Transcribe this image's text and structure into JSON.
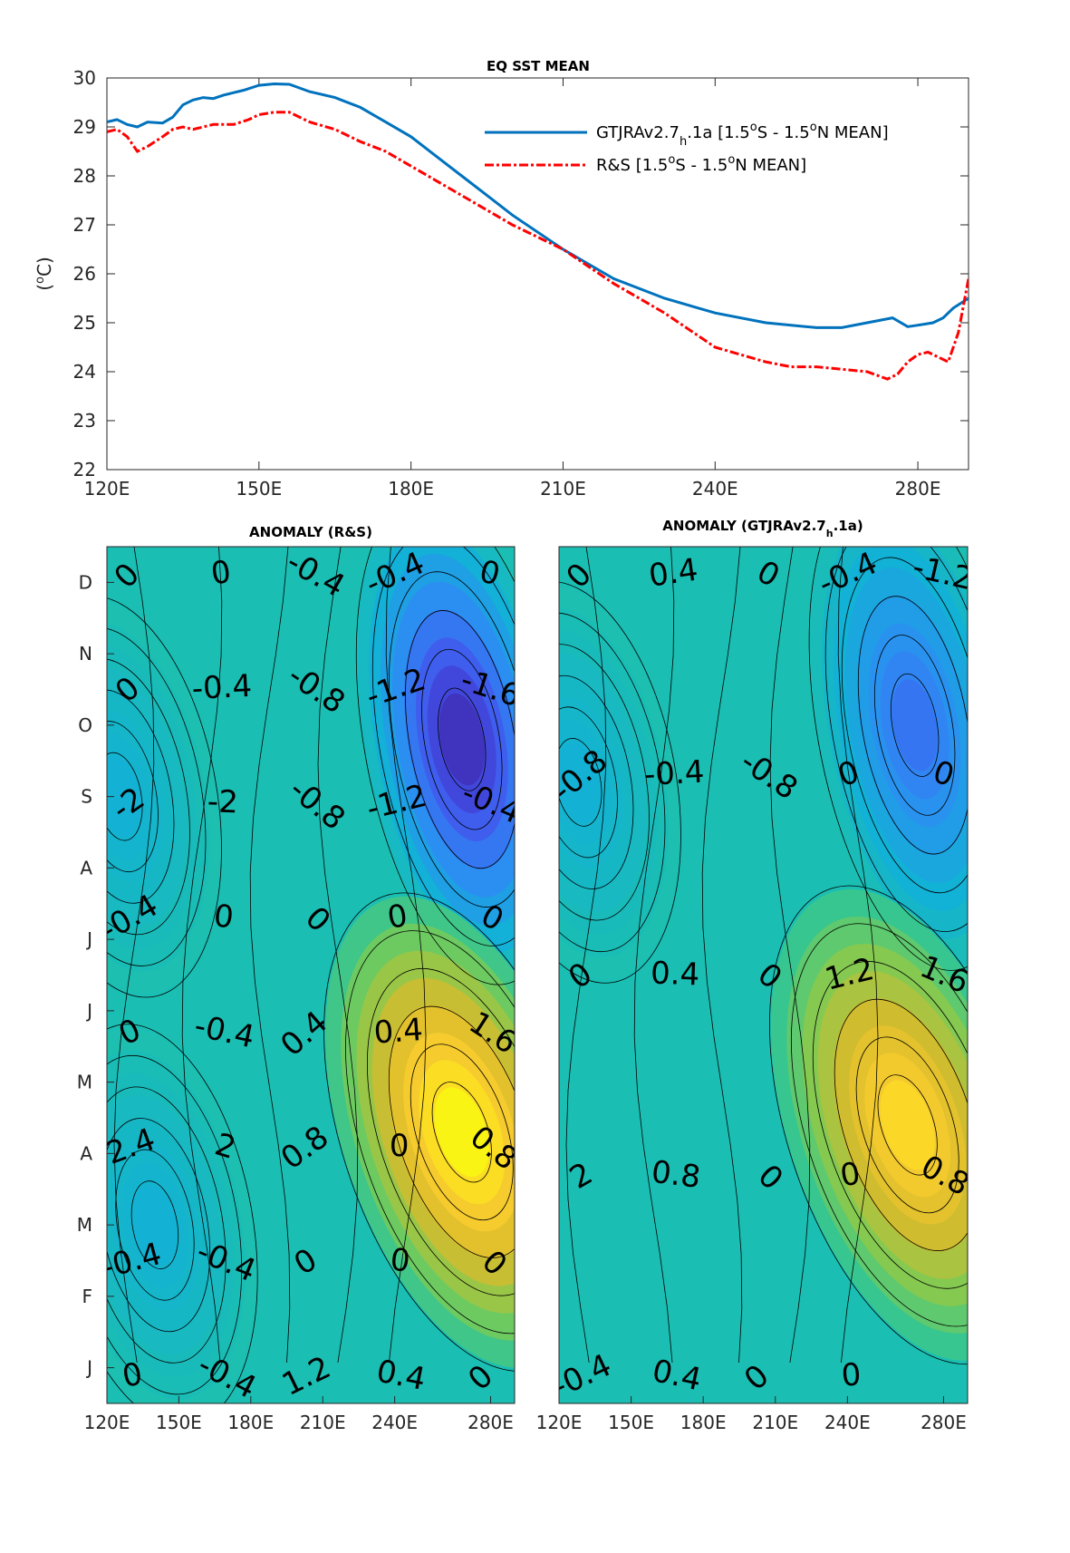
{
  "colors": {
    "gtjra": "#0072BD",
    "rs": "#FF0000",
    "colormap": [
      "#3e26a8",
      "#4352ec",
      "#2d8cf4",
      "#12b1d6",
      "#1fc4a3",
      "#7ccb55",
      "#d5bb2d",
      "#fcce2e",
      "#f9fb0e"
    ]
  },
  "chart_data": [
    {
      "type": "line",
      "title": "EQ SST MEAN",
      "ylabel": "(°C)",
      "xlabel": "",
      "xlim": [
        120,
        290
      ],
      "ylim": [
        22,
        30
      ],
      "xticks": [
        120,
        150,
        180,
        210,
        240,
        280
      ],
      "xtick_labels": [
        "120E",
        "150E",
        "180E",
        "210E",
        "240E",
        "280E"
      ],
      "yticks": [
        22,
        23,
        24,
        25,
        26,
        27,
        28,
        29,
        30
      ],
      "ytick_labels": [
        "22",
        "23",
        "24",
        "25",
        "26",
        "27",
        "28",
        "29",
        "30"
      ],
      "legend_position": "top-right",
      "series": [
        {
          "name": "GTJRAv2.7h.1a [1.5°S - 1.5°N MEAN]",
          "legend_main": "GTJRAv2.7",
          "legend_sub": "h",
          "legend_rest": ".1a [1.5",
          "legend_sup1": "o",
          "legend_mid": "S - 1.5",
          "legend_sup2": "o",
          "legend_end": "N MEAN]",
          "x": [
            120,
            122,
            124,
            126,
            128,
            131,
            133,
            135,
            137,
            139,
            141,
            143,
            145,
            147,
            150,
            153,
            156,
            160,
            165,
            170,
            175,
            180,
            185,
            190,
            195,
            200,
            210,
            220,
            230,
            240,
            250,
            260,
            265,
            270,
            275,
            278,
            280,
            283,
            285,
            287,
            290
          ],
          "y": [
            29.1,
            29.15,
            29.05,
            29.0,
            29.1,
            29.08,
            29.2,
            29.45,
            29.55,
            29.6,
            29.58,
            29.65,
            29.7,
            29.75,
            29.85,
            29.88,
            29.87,
            29.72,
            29.6,
            29.4,
            29.1,
            28.8,
            28.4,
            28.0,
            27.6,
            27.2,
            26.5,
            25.9,
            25.5,
            25.2,
            25.0,
            24.9,
            24.9,
            25.0,
            25.1,
            24.92,
            24.95,
            25.0,
            25.1,
            25.3,
            25.5
          ]
        },
        {
          "name": "R&S [1.5°S - 1.5°N MEAN]",
          "legend_main": "R&S [1.5",
          "legend_sup1": "o",
          "legend_mid": "S - 1.5",
          "legend_sup2": "o",
          "legend_end": "N MEAN]",
          "x": [
            120,
            122,
            124,
            126,
            128,
            131,
            133,
            135,
            137,
            139,
            141,
            143,
            145,
            148,
            150,
            153,
            156,
            160,
            165,
            170,
            175,
            180,
            185,
            190,
            195,
            200,
            210,
            220,
            230,
            240,
            250,
            255,
            260,
            265,
            270,
            274,
            276,
            278,
            280,
            282,
            284,
            286,
            288,
            290
          ],
          "y": [
            28.9,
            28.95,
            28.8,
            28.5,
            28.6,
            28.8,
            28.95,
            29.0,
            28.95,
            29.0,
            29.05,
            29.05,
            29.05,
            29.15,
            29.25,
            29.3,
            29.3,
            29.1,
            28.95,
            28.7,
            28.5,
            28.2,
            27.9,
            27.6,
            27.3,
            27.0,
            26.5,
            25.8,
            25.2,
            24.5,
            24.2,
            24.1,
            24.1,
            24.05,
            24.0,
            23.85,
            23.95,
            24.2,
            24.35,
            24.4,
            24.3,
            24.2,
            24.8,
            25.9
          ]
        }
      ]
    },
    {
      "type": "heatmap",
      "title": "ANOMALY (R&S)",
      "xlim": [
        120,
        290
      ],
      "xticks": [
        120,
        150,
        180,
        210,
        240,
        280
      ],
      "xtick_labels": [
        "120E",
        "150E",
        "180E",
        "210E",
        "240E",
        "280E"
      ],
      "month_labels": [
        "J",
        "F",
        "M",
        "A",
        "M",
        "J",
        "J",
        "A",
        "S",
        "O",
        "N",
        "D"
      ],
      "contour_labels": [
        "0",
        "0",
        "-0.4",
        "-0.4",
        "0",
        "0",
        "-0.4",
        "-0.8",
        "-1.2",
        "-1.6",
        "-2",
        "-2",
        "-0.8",
        "-1.2",
        "-0.4",
        "-0.4",
        "0",
        "0",
        "0",
        "0",
        "0",
        "-0.4",
        "0.4",
        "0.4",
        "1.6",
        "2.4",
        "2",
        "0.8",
        "0",
        "0.8",
        "-0.4",
        "-0.4",
        "0",
        "0",
        "0",
        "0",
        "-0.4",
        "1.2",
        "0.4",
        "0"
      ],
      "blobs": [
        {
          "lon": 268,
          "month": 9.3,
          "value": -2.2
        },
        {
          "lon": 268,
          "month": 3.8,
          "value": 2.5
        },
        {
          "lon": 125,
          "month": 8.5,
          "value": -0.5
        },
        {
          "lon": 140,
          "month": 2.5,
          "value": -0.5
        }
      ]
    },
    {
      "type": "heatmap",
      "title": "ANOMALY (GTJRAv2.7h.1a)",
      "title_main": "ANOMALY (GTJRAv2.7",
      "title_sub": "h",
      "title_end": ".1a)",
      "xlim": [
        120,
        290
      ],
      "xticks": [
        120,
        150,
        180,
        210,
        240,
        280
      ],
      "xtick_labels": [
        "120E",
        "150E",
        "180E",
        "210E",
        "240E",
        "280E"
      ],
      "contour_labels": [
        "0",
        "0.4",
        "0",
        "-0.4",
        "-1.2",
        "-0.8",
        "-0.4",
        "-0.8",
        "0",
        "0",
        "0",
        "0.4",
        "0",
        "1.2",
        "1.6",
        "2",
        "0.8",
        "0",
        "0",
        "0.8",
        "-0.4",
        "0.4",
        "0",
        "0"
      ],
      "blobs": [
        {
          "lon": 268,
          "month": 9.5,
          "value": -1.4
        },
        {
          "lon": 265,
          "month": 3.9,
          "value": 2.1
        },
        {
          "lon": 128,
          "month": 8.7,
          "value": -0.5
        }
      ]
    }
  ]
}
